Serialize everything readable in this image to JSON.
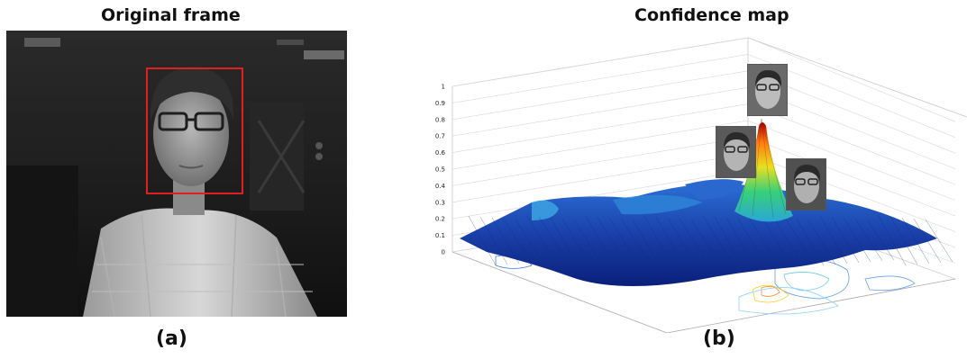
{
  "panel_a": {
    "title": "Original frame",
    "label": "(a)",
    "bounding_box_color": "#e02020"
  },
  "panel_b": {
    "title": "Confidence map",
    "label": "(b)"
  },
  "chart_data": {
    "type": "surface",
    "title": "Confidence map",
    "z_ticks": [
      "0",
      "0.1",
      "0.2",
      "0.3",
      "0.4",
      "0.5",
      "0.6",
      "0.7",
      "0.8",
      "0.9",
      "1"
    ],
    "zlim": [
      0,
      1
    ],
    "peak_value": 0.85,
    "colormap": "jet",
    "contour_projection_on_floor": true,
    "thumbnail_count": 3
  }
}
